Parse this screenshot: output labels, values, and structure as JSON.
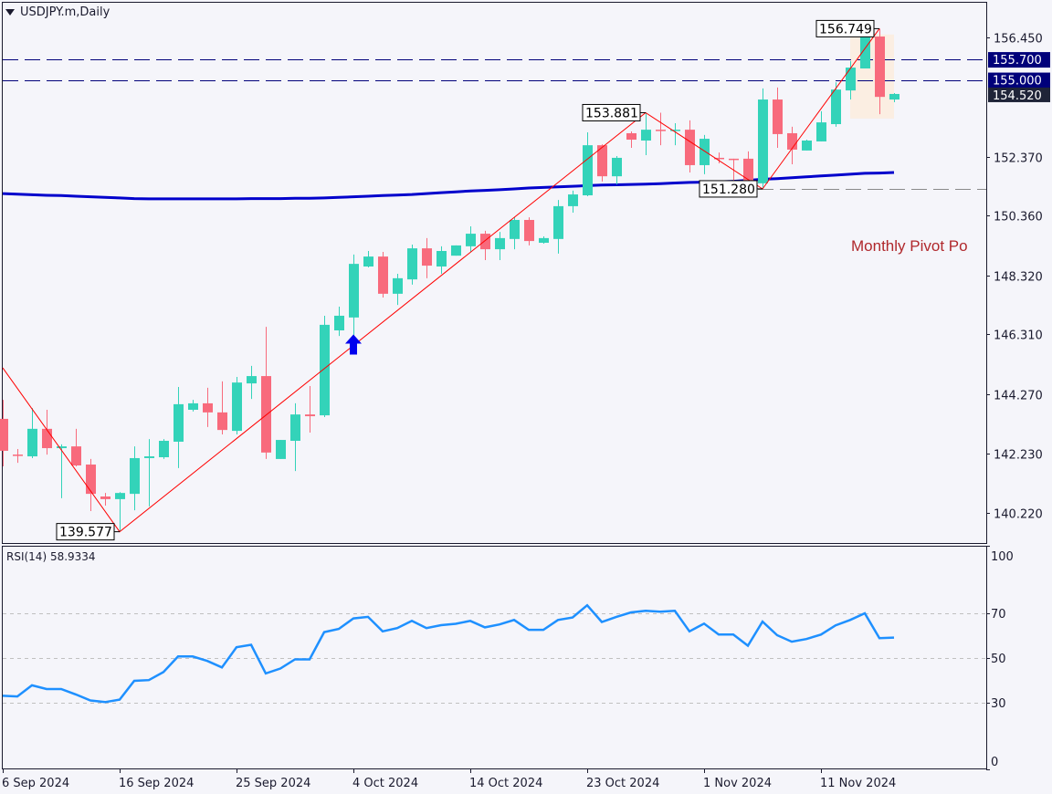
{
  "header": {
    "title": "USDJPY.m,Daily",
    "menu_icon": "triangle-down-icon"
  },
  "colors": {
    "background": "#f5f5fa",
    "bull": "#33d3b9",
    "bear": "#f86a7c",
    "ma": "#0000cc",
    "zigzag": "#ff0000",
    "pivot_lines": "#00007a",
    "rsi": "#1e90ff",
    "highlight_zone": "#fbeee2",
    "pivot_text": "#b0282c",
    "current_price_box": "#1f2438"
  },
  "pivot_label": "Monthly Pivot Po",
  "chart_data": [
    {
      "type": "candlestick",
      "title": "USDJPY.m,Daily",
      "ylim": [
        139.2,
        157.05
      ],
      "y_ticks": [
        156.45,
        152.37,
        150.36,
        148.32,
        146.31,
        144.27,
        142.23,
        140.22
      ],
      "x_labels": [
        "6 Sep 2024",
        "16 Sep 2024",
        "25 Sep 2024",
        "4 Oct 2024",
        "14 Oct 2024",
        "23 Oct 2024",
        "1 Nov 2024",
        "11 Nov 2024"
      ],
      "x_label_every_n_candles": 8,
      "candles": [
        [
          143.43,
          144.08,
          141.81,
          142.34
        ],
        [
          142.21,
          142.4,
          141.93,
          142.18
        ],
        [
          142.15,
          143.8,
          142.09,
          143.09
        ],
        [
          143.09,
          143.74,
          142.21,
          142.43
        ],
        [
          142.43,
          142.56,
          140.72,
          142.49
        ],
        [
          142.49,
          143.09,
          141.81,
          141.84
        ],
        [
          141.87,
          142.06,
          140.28,
          140.87
        ],
        [
          140.78,
          140.9,
          140.47,
          140.69
        ],
        [
          140.69,
          140.93,
          139.577,
          140.9
        ],
        [
          140.87,
          142.49,
          140.31,
          142.09
        ],
        [
          142.09,
          142.74,
          140.44,
          142.15
        ],
        [
          142.12,
          142.74,
          142.06,
          142.68
        ],
        [
          142.65,
          144.52,
          141.75,
          143.93
        ],
        [
          143.74,
          144.08,
          143.68,
          143.96
        ],
        [
          143.96,
          144.49,
          143.15,
          143.65
        ],
        [
          143.65,
          144.71,
          142.9,
          143.05
        ],
        [
          143.02,
          144.86,
          142.9,
          144.67
        ],
        [
          144.64,
          145.24,
          144.11,
          144.89
        ],
        [
          144.89,
          146.57,
          142.06,
          142.28
        ],
        [
          142.06,
          142.71,
          142.06,
          142.71
        ],
        [
          142.68,
          143.96,
          141.65,
          143.58
        ],
        [
          143.58,
          144.55,
          142.96,
          143.52
        ],
        [
          143.55,
          146.95,
          143.49,
          146.64
        ],
        [
          146.45,
          147.26,
          146.26,
          146.95
        ],
        [
          146.89,
          149.04,
          146.05,
          148.72
        ],
        [
          148.63,
          149.16,
          148.6,
          148.97
        ],
        [
          148.97,
          149.13,
          147.57,
          147.7
        ],
        [
          147.7,
          148.38,
          147.32,
          148.23
        ],
        [
          148.19,
          149.38,
          148.01,
          149.25
        ],
        [
          149.25,
          149.6,
          148.23,
          148.66
        ],
        [
          148.63,
          149.32,
          148.38,
          149.16
        ],
        [
          149.0,
          149.35,
          149.0,
          149.35
        ],
        [
          149.32,
          150.0,
          149.13,
          149.75
        ],
        [
          149.75,
          149.85,
          148.85,
          149.22
        ],
        [
          149.22,
          149.81,
          148.85,
          149.6
        ],
        [
          149.57,
          150.31,
          149.22,
          150.22
        ],
        [
          150.22,
          150.31,
          149.35,
          149.5
        ],
        [
          149.44,
          149.66,
          149.41,
          149.6
        ],
        [
          149.57,
          150.9,
          149.07,
          150.69
        ],
        [
          150.69,
          151.22,
          150.47,
          151.09
        ],
        [
          151.06,
          153.21,
          151.03,
          152.77
        ],
        [
          152.77,
          152.8,
          151.53,
          151.71
        ],
        [
          151.71,
          152.4,
          151.43,
          152.34
        ],
        [
          153.18,
          153.24,
          152.68,
          152.96
        ],
        [
          152.93,
          153.881,
          152.43,
          153.3
        ],
        [
          153.3,
          153.88,
          152.77,
          153.27
        ],
        [
          153.27,
          153.52,
          152.77,
          153.3
        ],
        [
          153.3,
          153.62,
          151.84,
          152.09
        ],
        [
          152.09,
          153.12,
          151.78,
          152.99
        ],
        [
          152.34,
          152.52,
          152.15,
          152.31
        ],
        [
          152.31,
          152.31,
          151.56,
          152.28
        ],
        [
          152.31,
          152.56,
          151.47,
          151.47
        ],
        [
          151.47,
          154.71,
          151.28,
          154.33
        ],
        [
          154.33,
          154.74,
          152.68,
          153.15
        ],
        [
          153.18,
          153.4,
          152.12,
          152.62
        ],
        [
          152.59,
          152.96,
          152.59,
          152.93
        ],
        [
          152.9,
          153.93,
          152.9,
          153.55
        ],
        [
          153.49,
          154.92,
          153.4,
          154.67
        ],
        [
          154.64,
          155.64,
          154.33,
          155.42
        ],
        [
          155.39,
          156.57,
          155.39,
          156.48
        ],
        [
          156.48,
          156.749,
          153.83,
          154.42
        ],
        [
          154.33,
          154.55,
          154.24,
          154.52
        ]
      ],
      "candle_fields": [
        "open",
        "high",
        "low",
        "close"
      ],
      "moving_average": [
        151.12,
        151.1,
        151.08,
        151.06,
        151.05,
        151.03,
        151.01,
        150.99,
        150.97,
        150.95,
        150.94,
        150.94,
        150.94,
        150.94,
        150.94,
        150.94,
        150.94,
        150.95,
        150.95,
        150.95,
        150.96,
        150.96,
        150.97,
        150.99,
        151.01,
        151.03,
        151.05,
        151.07,
        151.09,
        151.12,
        151.15,
        151.18,
        151.21,
        151.23,
        151.25,
        151.28,
        151.31,
        151.33,
        151.35,
        151.37,
        151.39,
        151.41,
        151.42,
        151.43,
        151.44,
        151.46,
        151.48,
        151.5,
        151.51,
        151.52,
        151.54,
        151.57,
        151.61,
        151.63,
        151.66,
        151.69,
        151.72,
        151.75,
        151.78,
        151.81,
        151.82,
        151.84
      ],
      "zigzag": [
        {
          "candle": 0,
          "price": 145.17
        },
        {
          "candle": 8,
          "price": 139.577,
          "label": "139.577"
        },
        {
          "candle": 44,
          "price": 153.881,
          "label": "153.881"
        },
        {
          "candle": 52,
          "price": 151.28,
          "label": "151.280"
        },
        {
          "candle": 60,
          "price": 156.749,
          "label": "156.749"
        }
      ],
      "horizontal_levels": [
        {
          "price": 155.7,
          "label": "155.700",
          "style": "dashed"
        },
        {
          "price": 155.0,
          "label": "155.000",
          "style": "dashed"
        }
      ],
      "support_line": {
        "price": 151.28,
        "from_candle": 52
      },
      "current_price": {
        "value": 154.52,
        "label": "154.520"
      },
      "buy_arrow": {
        "candle": 24,
        "price": 146.0,
        "icon": "up-arrow-icon"
      },
      "highlight_zone": {
        "from_candle": 58,
        "to_candle": 61,
        "top": 156.55,
        "bottom": 153.68
      }
    },
    {
      "type": "line",
      "title": "RSI(14) 58.9334",
      "indicator": "RSI(14)",
      "current_value": "58.9334",
      "ylim": [
        0,
        100
      ],
      "y_ticks": [
        100,
        70,
        50,
        30,
        0
      ],
      "levels": [
        70,
        50,
        30
      ],
      "values": [
        32.9,
        32.6,
        37.6,
        35.9,
        35.9,
        33.5,
        30.8,
        30.1,
        31.2,
        39.6,
        39.9,
        43.5,
        50.5,
        50.5,
        48.5,
        45.6,
        54.6,
        55.7,
        42.9,
        45.1,
        49.2,
        49.2,
        61.4,
        62.8,
        67.5,
        68.2,
        61.7,
        63.2,
        66.4,
        63.2,
        64.5,
        65.1,
        66.4,
        63.5,
        64.8,
        66.8,
        62.4,
        62.4,
        66.8,
        67.9,
        73.4,
        65.9,
        68.2,
        70.2,
        70.9,
        70.5,
        70.9,
        61.7,
        65.2,
        60.3,
        60.3,
        55.3,
        66.1,
        60.0,
        57.1,
        58.3,
        60.3,
        64.4,
        66.8,
        69.8,
        58.7,
        58.93
      ]
    }
  ]
}
